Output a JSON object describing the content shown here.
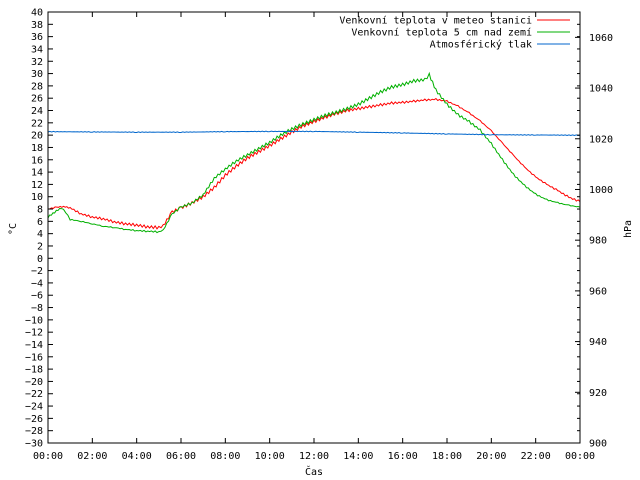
{
  "chart_data": {
    "type": "line",
    "xlabel": "Čas",
    "ylabel_left": "°C",
    "ylabel_right": "hPa",
    "x_ticks": [
      "00:00",
      "02:00",
      "04:00",
      "06:00",
      "08:00",
      "10:00",
      "12:00",
      "14:00",
      "16:00",
      "18:00",
      "20:00",
      "22:00",
      "00:00"
    ],
    "xlim_hours": [
      0,
      24
    ],
    "ylim_left": [
      -30,
      40
    ],
    "y_left_step": 2,
    "ylim_right": [
      900,
      1070
    ],
    "y_right_ticks": [
      900,
      920,
      940,
      960,
      980,
      1000,
      1020,
      1040,
      1060
    ],
    "grid": false,
    "legend_position": "top-right",
    "series": [
      {
        "name": "Venkovní teplota v meteo stanici",
        "color": "#ff0000",
        "axis": "left",
        "x": [
          0,
          0.4,
          0.7,
          1.0,
          1.5,
          2.0,
          2.5,
          3.0,
          3.5,
          4.0,
          4.5,
          5.0,
          5.2,
          5.6,
          6.0,
          6.5,
          7.0,
          7.5,
          8.0,
          8.5,
          9.0,
          9.5,
          10.0,
          10.5,
          11.0,
          11.5,
          12.0,
          12.5,
          13.0,
          13.5,
          14.0,
          14.5,
          15.0,
          15.5,
          16.0,
          16.5,
          17.0,
          17.5,
          18.0,
          18.5,
          19.0,
          19.5,
          20.0,
          20.5,
          21.0,
          21.5,
          22.0,
          22.5,
          23.0,
          23.5,
          24.0
        ],
        "y": [
          8.0,
          8.3,
          8.4,
          8.2,
          7.2,
          6.7,
          6.4,
          5.9,
          5.6,
          5.4,
          5.1,
          5.0,
          5.3,
          7.5,
          8.2,
          9.0,
          10.0,
          11.5,
          13.5,
          15.0,
          16.3,
          17.3,
          18.3,
          19.4,
          20.5,
          21.5,
          22.2,
          22.9,
          23.5,
          24.0,
          24.3,
          24.6,
          24.9,
          25.2,
          25.3,
          25.5,
          25.7,
          25.8,
          25.5,
          24.7,
          23.6,
          22.3,
          20.7,
          18.7,
          16.7,
          14.8,
          13.2,
          12.0,
          11.0,
          9.9,
          9.2
        ]
      },
      {
        "name": "Venkovní teplota 5 cm nad zemí",
        "color": "#00b000",
        "axis": "left",
        "x": [
          0,
          0.3,
          0.6,
          0.8,
          1.0,
          1.5,
          2.0,
          2.5,
          3.0,
          3.5,
          4.0,
          4.5,
          5.0,
          5.2,
          5.6,
          6.0,
          6.5,
          7.0,
          7.5,
          8.0,
          8.5,
          9.0,
          9.5,
          10.0,
          10.5,
          11.0,
          11.5,
          12.0,
          12.5,
          13.0,
          13.5,
          14.0,
          14.5,
          15.0,
          15.5,
          16.0,
          16.5,
          17.0,
          17.2,
          17.5,
          18.0,
          18.5,
          19.0,
          19.5,
          20.0,
          20.5,
          21.0,
          21.5,
          22.0,
          22.5,
          23.0,
          23.5,
          24.0
        ],
        "y": [
          6.7,
          7.5,
          8.2,
          7.5,
          6.3,
          6.0,
          5.6,
          5.2,
          5.0,
          4.7,
          4.5,
          4.4,
          4.3,
          4.6,
          7.2,
          8.3,
          9.0,
          10.3,
          13.0,
          14.5,
          15.8,
          16.8,
          17.8,
          18.8,
          20.0,
          21.0,
          21.8,
          22.5,
          23.2,
          23.7,
          24.3,
          25.0,
          26.0,
          27.0,
          27.8,
          28.2,
          28.8,
          29.0,
          29.8,
          27.3,
          25.0,
          23.3,
          22.2,
          20.8,
          18.6,
          16.0,
          13.6,
          11.8,
          10.4,
          9.5,
          9.0,
          8.6,
          8.3
        ]
      },
      {
        "name": "Atmosférický tlak",
        "color": "#0066cc",
        "axis": "right",
        "x": [
          0,
          2,
          4,
          6,
          8,
          10,
          12,
          14,
          16,
          18,
          20,
          22,
          24
        ],
        "y": [
          1022.8,
          1022.7,
          1022.6,
          1022.6,
          1022.8,
          1022.9,
          1022.9,
          1022.6,
          1022.3,
          1021.9,
          1021.6,
          1021.5,
          1021.4
        ]
      }
    ]
  }
}
